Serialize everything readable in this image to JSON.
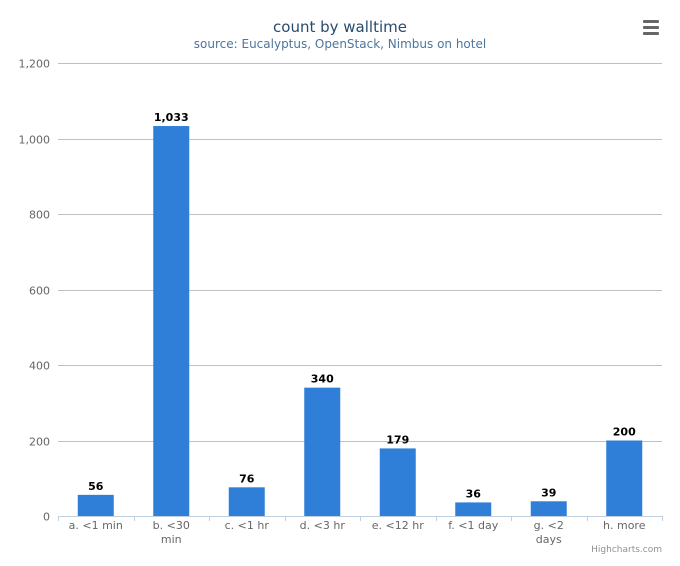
{
  "chart_data": {
    "type": "bar",
    "title": "count by walltime",
    "subtitle": "source: Eucalyptus, OpenStack, Nimbus on hotel",
    "categories": [
      "a. <1 min",
      "b. <30 min",
      "c. <1 hr",
      "d. <3 hr",
      "e. <12 hr",
      "f. <1 day",
      "g. <2 days",
      "h. more"
    ],
    "category_lines": [
      [
        "a. <1 min"
      ],
      [
        "b. <30",
        "min"
      ],
      [
        "c. <1 hr"
      ],
      [
        "d. <3 hr"
      ],
      [
        "e. <12 hr"
      ],
      [
        "f. <1 day"
      ],
      [
        "g. <2",
        "days"
      ],
      [
        "h. more"
      ]
    ],
    "values": [
      56,
      1033,
      76,
      340,
      179,
      36,
      39,
      200
    ],
    "data_labels": [
      "56",
      "1,033",
      "76",
      "340",
      "179",
      "36",
      "39",
      "200"
    ],
    "yticks": [
      0,
      200,
      400,
      600,
      800,
      1000,
      1200
    ],
    "ytick_labels": [
      "0",
      "200",
      "400",
      "600",
      "800",
      "1,000",
      "1,200"
    ],
    "ylim": [
      0,
      1200
    ],
    "xlabel": "",
    "ylabel": "",
    "grid": true,
    "legend": false,
    "bar_color": "#2f7ed8"
  },
  "menu_icon": "hamburger-menu-icon",
  "credits": "Highcharts.com"
}
